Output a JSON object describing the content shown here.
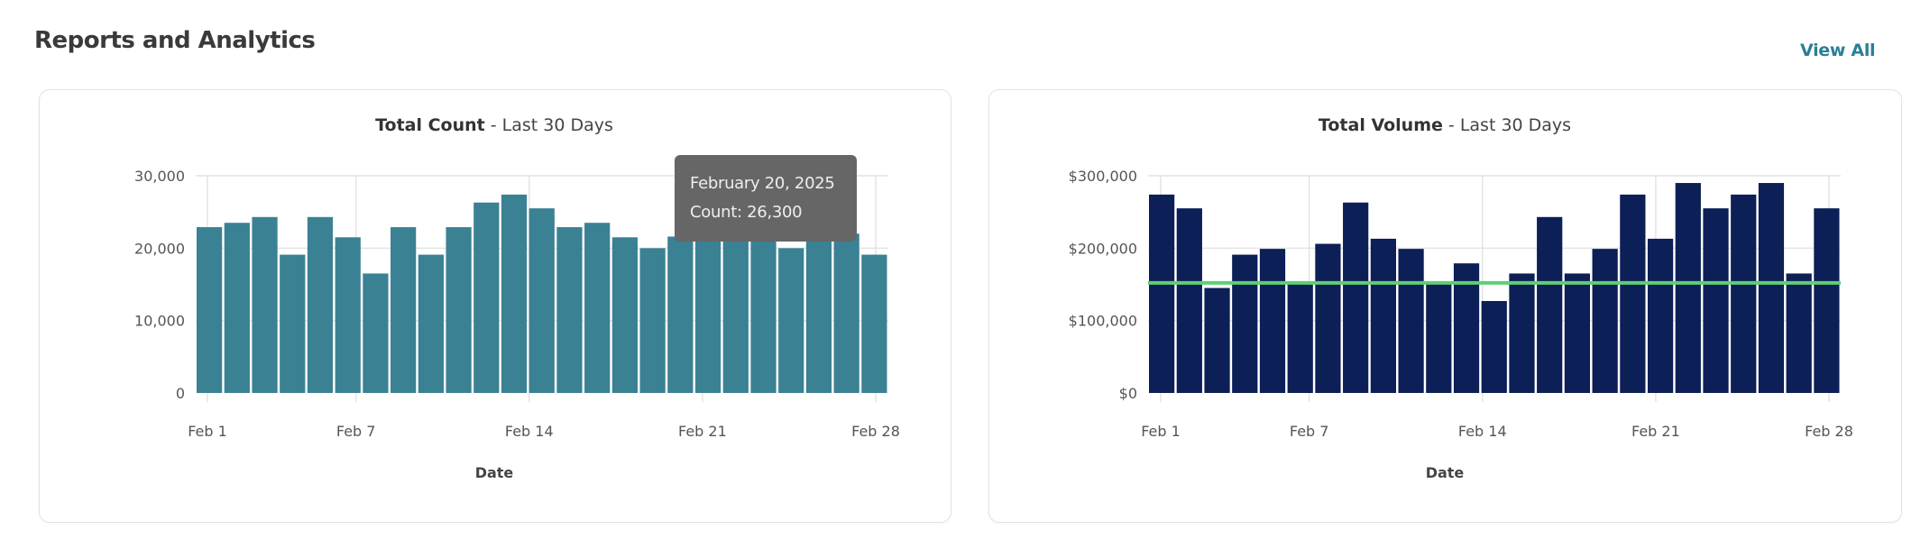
{
  "header": {
    "title": "Reports and Analytics",
    "view_all_label": "View All"
  },
  "colors": {
    "count_bar": "#3a8193",
    "volume_bar": "#0c1f56",
    "reference_line": "#5fcf74",
    "link": "#2a7f95"
  },
  "tooltip": {
    "date": "February 20, 2025",
    "value": "Count: 26,300"
  },
  "chart_data": [
    {
      "type": "bar",
      "title_bold": "Total Count",
      "title_rest": " - Last 30 Days",
      "xlabel": "Date",
      "ylabel": "",
      "ylim": [
        0,
        30000
      ],
      "yticks": [
        "0",
        "10,000",
        "20,000",
        "30,000"
      ],
      "ytick_values": [
        0,
        10000,
        20000,
        30000
      ],
      "xticks": [
        "Feb 1",
        "Feb 7",
        "Feb 14",
        "Feb 21",
        "Feb 28"
      ],
      "xtick_days": [
        1,
        7,
        14,
        21,
        28
      ],
      "grid": true,
      "values": [
        22900,
        23500,
        24300,
        19100,
        24300,
        21500,
        16500,
        22900,
        19100,
        22900,
        26300,
        27400,
        25500,
        22900,
        23500,
        21500,
        20000,
        21600,
        22000,
        22000,
        22000,
        20000,
        22000,
        22000,
        19100
      ]
    },
    {
      "type": "bar",
      "title_bold": "Total Volume",
      "title_rest": " - Last 30 Days",
      "xlabel": "Date",
      "ylabel": "",
      "ylim": [
        0,
        300000
      ],
      "yticks": [
        "$0",
        "$100,000",
        "$200,000",
        "$300,000"
      ],
      "ytick_values": [
        0,
        100000,
        200000,
        300000
      ],
      "xticks": [
        "Feb 1",
        "Feb 7",
        "Feb 14",
        "Feb 21",
        "Feb 28"
      ],
      "xtick_days": [
        1,
        7,
        14,
        21,
        28
      ],
      "grid": true,
      "reference_line": 152000,
      "values": [
        274000,
        255000,
        145000,
        191000,
        199000,
        150000,
        206000,
        263000,
        213000,
        199000,
        150000,
        179000,
        127000,
        165000,
        243000,
        165000,
        199000,
        274000,
        213000,
        290000,
        255000,
        274000,
        290000,
        165000,
        255000
      ]
    }
  ]
}
